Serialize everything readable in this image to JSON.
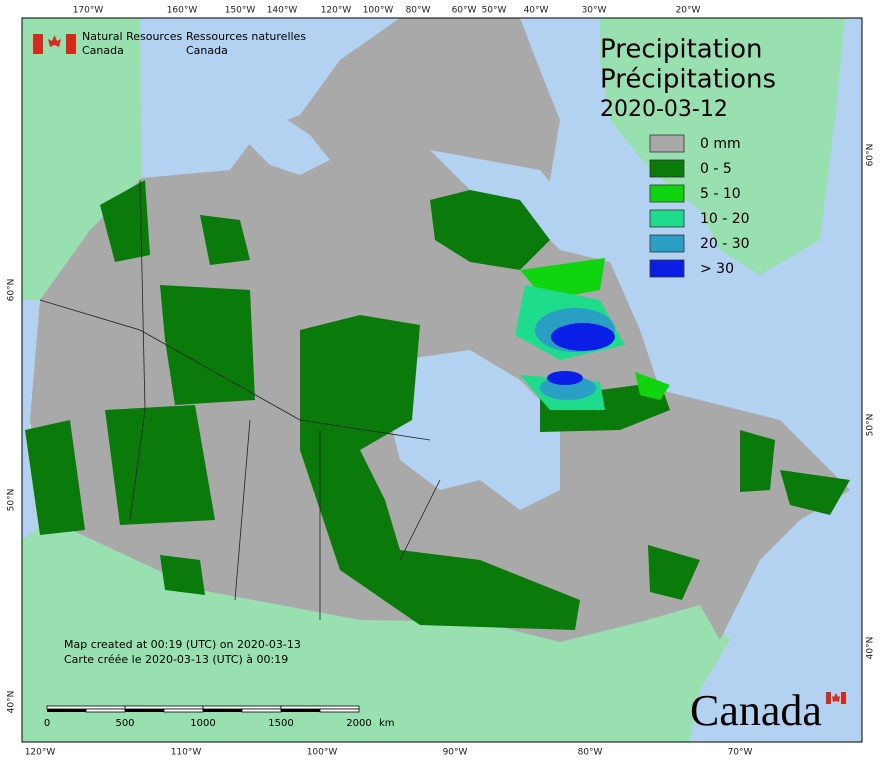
{
  "header": {
    "agency_en": [
      "Natural Resources",
      "Canada"
    ],
    "agency_fr": [
      "Ressources naturelles",
      "Canada"
    ]
  },
  "title": {
    "en": "Precipitation",
    "fr": "Précipitations",
    "date": "2020-03-12"
  },
  "legend": [
    {
      "label": "0 mm",
      "color": "#a9a9a9"
    },
    {
      "label": "0 - 5",
      "color": "#0a7a0a"
    },
    {
      "label": "5 - 10",
      "color": "#11d411"
    },
    {
      "label": "10 - 20",
      "color": "#1fdc8c"
    },
    {
      "label": "20 - 30",
      "color": "#2a9fc4"
    },
    {
      "label": "> 30",
      "color": "#0a1ee6"
    }
  ],
  "graticule": {
    "top": [
      "170°W",
      "160°W",
      "150°W",
      "140°W",
      "120°W",
      "100°W",
      "80°W",
      "60°W",
      "50°W",
      "40°W",
      "30°W",
      "20°W"
    ],
    "bottom": [
      "120°W",
      "110°W",
      "100°W",
      "90°W",
      "80°W",
      "70°W"
    ],
    "left": [
      "60°N",
      "50°N",
      "40°N"
    ],
    "right": [
      "60°N",
      "50°N",
      "40°N"
    ]
  },
  "credits": [
    "Map created at 00:19 (UTC) on 2020-03-13",
    "Carte créée le 2020-03-13 (UTC) à 00:19"
  ],
  "scale": {
    "ticks": [
      0,
      500,
      1000,
      1500,
      2000
    ],
    "unit": "km"
  },
  "wordmark": "Canada"
}
